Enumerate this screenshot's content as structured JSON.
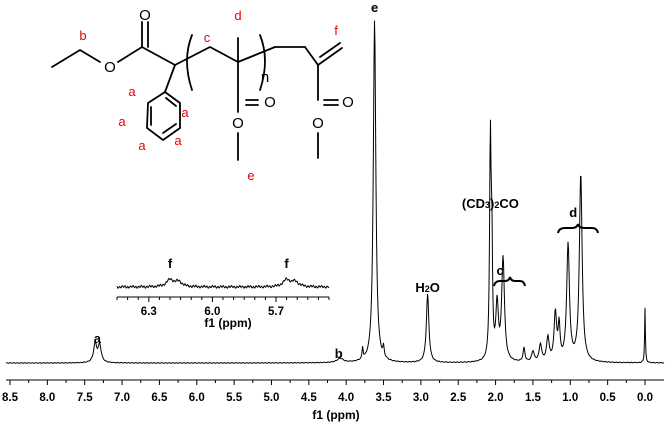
{
  "chart_data": {
    "type": "line",
    "title": "",
    "xlabel": "f1 (ppm)",
    "ylabel": "",
    "x_reversed": true,
    "xlim": [
      8.5,
      -0.2
    ],
    "x_ticks": [
      "8.5",
      "8.0",
      "7.5",
      "7.0",
      "6.5",
      "6.0",
      "5.5",
      "5.0",
      "4.5",
      "4.0",
      "3.5",
      "3.0",
      "2.5",
      "2.0",
      "1.5",
      "1.0",
      "0.5",
      "0.0"
    ],
    "grid": false,
    "series": [
      {
        "name": "",
        "peaks": [
          {
            "ppm": 7.36,
            "height": 0.055,
            "width": 0.025
          },
          {
            "ppm": 7.3,
            "height": 0.05,
            "width": 0.025
          },
          {
            "ppm": 4.08,
            "height": 0.012,
            "width": 0.05
          },
          {
            "ppm": 3.78,
            "height": 0.035,
            "width": 0.008
          },
          {
            "ppm": 3.62,
            "height": 1.0,
            "width": 0.02
          },
          {
            "ppm": 3.5,
            "height": 0.03,
            "width": 0.01
          },
          {
            "ppm": 2.91,
            "height": 0.2,
            "width": 0.02
          },
          {
            "ppm": 2.07,
            "height": 0.64,
            "width": 0.012
          },
          {
            "ppm": 2.05,
            "height": 0.3,
            "width": 0.01
          },
          {
            "ppm": 1.98,
            "height": 0.16,
            "width": 0.02
          },
          {
            "ppm": 1.9,
            "height": 0.3,
            "width": 0.022
          },
          {
            "ppm": 1.62,
            "height": 0.04,
            "width": 0.015
          },
          {
            "ppm": 1.5,
            "height": 0.03,
            "width": 0.02
          },
          {
            "ppm": 1.4,
            "height": 0.05,
            "width": 0.02
          },
          {
            "ppm": 1.3,
            "height": 0.07,
            "width": 0.02
          },
          {
            "ppm": 1.2,
            "height": 0.14,
            "width": 0.02
          },
          {
            "ppm": 1.15,
            "height": 0.1,
            "width": 0.015
          },
          {
            "ppm": 1.03,
            "height": 0.34,
            "width": 0.022
          },
          {
            "ppm": 0.86,
            "height": 0.55,
            "width": 0.022
          },
          {
            "ppm": 0.0,
            "height": 0.16,
            "width": 0.006
          }
        ]
      }
    ],
    "annotations": [
      {
        "label": "a",
        "ppm": 7.33
      },
      {
        "label": "b",
        "ppm": 4.1
      },
      {
        "label": "e",
        "ppm": 3.62
      },
      {
        "label": "H2O",
        "ppm": 2.91
      },
      {
        "label": "(CD3)2CO",
        "ppm": 2.07
      },
      {
        "label": "c",
        "ppm": 1.94
      },
      {
        "label": "d",
        "ppm": 0.96
      }
    ],
    "inset": {
      "xlabel": "f1 (ppm)",
      "xlim": [
        6.45,
        5.45
      ],
      "x_ticks": [
        "6.3",
        "6.0",
        "5.7"
      ],
      "peaks": [
        {
          "label": "f",
          "ppm": 6.2
        },
        {
          "label": "f",
          "ppm": 5.65
        }
      ]
    }
  },
  "structure": {
    "labels": {
      "a": "a",
      "b": "b",
      "c": "c",
      "d": "d",
      "e": "e",
      "f": "f",
      "n": "n"
    },
    "atoms": {
      "o": "O"
    }
  },
  "colors": {
    "label_red": "#e00000",
    "line": "#000000"
  }
}
